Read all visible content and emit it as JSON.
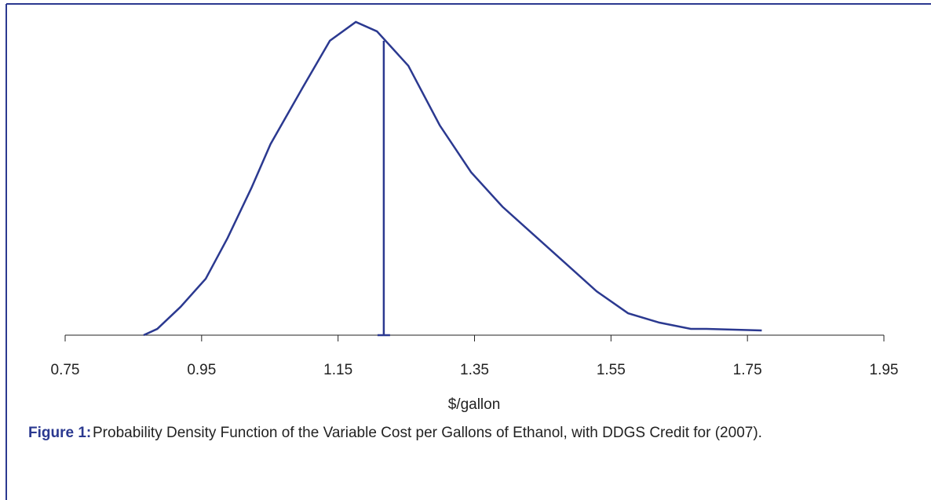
{
  "chart_data": {
    "type": "line",
    "x_label": "$/gallon",
    "x": [
      0.865,
      0.885,
      0.919,
      0.956,
      0.988,
      1.023,
      1.051,
      1.098,
      1.138,
      1.176,
      1.207,
      1.253,
      1.299,
      1.345,
      1.391,
      1.437,
      1.483,
      1.529,
      1.575,
      1.621,
      1.667,
      1.69,
      1.771
    ],
    "series": [
      {
        "color": "#2b3990",
        "values": [
          0,
          0.02,
          0.09,
          0.18,
          0.31,
          0.47,
          0.61,
          0.79,
          0.94,
          1.0,
          0.97,
          0.86,
          0.67,
          0.52,
          0.41,
          0.32,
          0.23,
          0.14,
          0.07,
          0.04,
          0.02,
          0.02,
          0.015
        ]
      }
    ],
    "vline": {
      "x": 1.217,
      "y": 0.94
    },
    "xlim": [
      0.75,
      1.95
    ],
    "xticks": [
      0.75,
      0.95,
      1.15,
      1.35,
      1.55,
      1.75,
      1.95
    ],
    "ylim": [
      0,
      1.05
    ]
  },
  "caption": {
    "label": "Figure 1:",
    "text": "Probability Density Function of the Variable Cost per Gallons of Ethanol, with DDGS Credit for (2007)."
  }
}
